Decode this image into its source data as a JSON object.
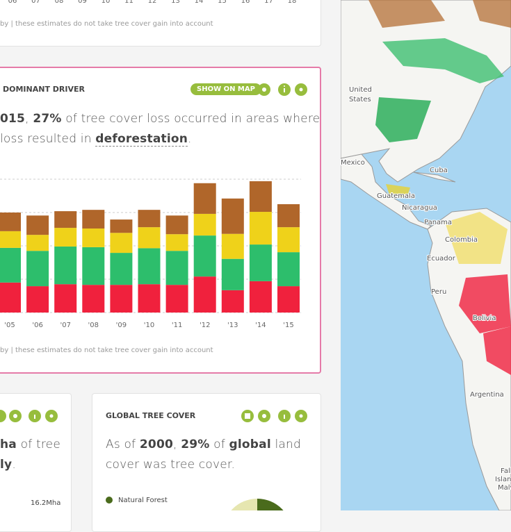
{
  "top_widget": {
    "x_labels": [
      "06",
      "07",
      "08",
      "09",
      "10",
      "11",
      "12",
      "13",
      "14",
      "15",
      "16",
      "17",
      "18"
    ],
    "footnote": "by | these estimates do not take tree cover gain into account"
  },
  "driver_widget": {
    "button": "SHOW ON MAP",
    "sentence_line1": [
      "015",
      ", ",
      "27%",
      " of tree cover loss occurred in areas where"
    ],
    "sentence_line2": [
      "loss resulted in ",
      "deforestation",
      "."
    ],
    "footnote": "by | these estimates do not take tree cover gain into account"
  },
  "chart_data": {
    "type": "stacked-bar",
    "title": "DOMINANT DRIVER",
    "categories": [
      "'05",
      "'06",
      "'07",
      "'08",
      "'09",
      "'10",
      "'11",
      "'12",
      "'13",
      "'14",
      "'15"
    ],
    "series": [
      {
        "color": "#f0213d",
        "values": [
          0.9,
          0.79,
          0.85,
          0.83,
          0.83,
          0.85,
          0.83,
          1.08,
          0.67,
          0.94,
          0.79
        ]
      },
      {
        "color": "#2dbe6c",
        "values": [
          1.04,
          1.06,
          1.13,
          1.13,
          0.96,
          1.08,
          1.02,
          1.23,
          0.94,
          1.1,
          1.02
        ]
      },
      {
        "color": "#efd21a",
        "values": [
          0.5,
          0.48,
          0.56,
          0.56,
          0.6,
          0.63,
          0.5,
          0.65,
          0.75,
          0.98,
          0.75
        ]
      },
      {
        "color": "#b0662a",
        "values": [
          0.56,
          0.58,
          0.5,
          0.56,
          0.4,
          0.52,
          0.56,
          0.92,
          1.06,
          0.92,
          0.69
        ]
      }
    ],
    "ylim": [
      0,
      4
    ],
    "yticks": [
      0,
      1,
      2,
      3,
      4
    ],
    "grid": true
  },
  "loss_widget": {
    "line1": [
      "ha",
      " of tree"
    ],
    "line2": [
      "ly",
      "."
    ],
    "legend_value": "16.2Mha"
  },
  "cover_widget": {
    "title": "GLOBAL TREE COVER",
    "line1": [
      "As of ",
      "2000",
      ", ",
      "29%",
      " of ",
      "global",
      " land"
    ],
    "line2": "cover was tree cover.",
    "legend": "Natural Forest"
  },
  "map": {
    "labels": [
      "United",
      "States",
      "Mexico",
      "Cuba",
      "Guatemala",
      "Nicaragua",
      "Panama",
      "Colombia",
      "Ecuador",
      "Peru",
      "Bolivia",
      "Argentina",
      "Falk",
      "Island",
      "Malvi"
    ]
  }
}
